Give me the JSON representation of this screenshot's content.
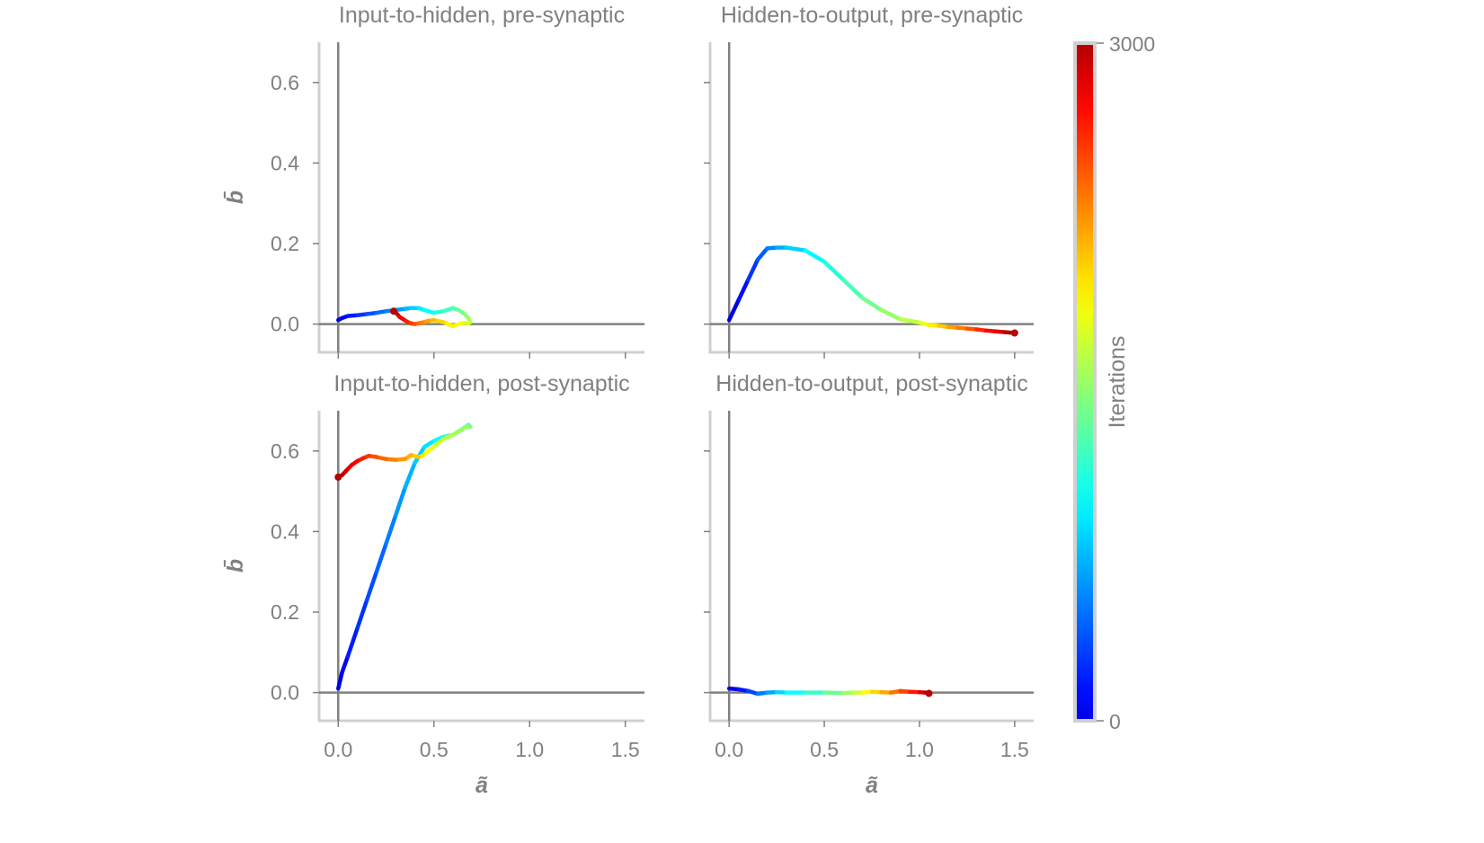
{
  "chart_data": {
    "type": "line",
    "colormap": "jet",
    "axis_color": "#808080",
    "spine_color": "#d0d0d0",
    "xlim": [
      -0.1,
      1.6
    ],
    "ylim": [
      -0.07,
      0.7
    ],
    "xticks": [
      0.0,
      0.5,
      1.0,
      1.5
    ],
    "xtick_labels": [
      "0.0",
      "0.5",
      "1.0",
      "1.5"
    ],
    "yticks": [
      0.0,
      0.2,
      0.4,
      0.6
    ],
    "ytick_labels": [
      "0.0",
      "0.2",
      "0.4",
      "0.6"
    ],
    "xlabel": "ã",
    "ylabel": "b̄",
    "colorbar": {
      "label": "Iterations",
      "min": 0,
      "max": 3000,
      "tick_labels": [
        "0",
        "3000"
      ]
    },
    "panels": [
      {
        "title": "Input-to-hidden, pre-synaptic",
        "x": [
          0.0,
          0.02,
          0.05,
          0.1,
          0.15,
          0.2,
          0.25,
          0.3,
          0.35,
          0.38,
          0.42,
          0.45,
          0.5,
          0.55,
          0.6,
          0.63,
          0.66,
          0.68,
          0.69,
          0.68,
          0.65,
          0.6,
          0.55,
          0.5,
          0.47,
          0.44,
          0.42,
          0.4,
          0.38,
          0.36,
          0.34,
          0.32,
          0.31,
          0.3,
          0.29
        ],
        "y": [
          0.01,
          0.015,
          0.02,
          0.022,
          0.025,
          0.028,
          0.032,
          0.035,
          0.038,
          0.04,
          0.04,
          0.035,
          0.028,
          0.032,
          0.04,
          0.035,
          0.025,
          0.015,
          0.005,
          0.002,
          0.003,
          -0.005,
          0.005,
          0.01,
          0.008,
          0.004,
          0.002,
          0.0,
          0.002,
          0.006,
          0.012,
          0.018,
          0.024,
          0.029,
          0.032
        ]
      },
      {
        "title": "Hidden-to-output, pre-synaptic",
        "x": [
          0.0,
          0.05,
          0.1,
          0.15,
          0.2,
          0.25,
          0.3,
          0.4,
          0.5,
          0.6,
          0.7,
          0.8,
          0.9,
          1.0,
          1.05,
          1.1,
          1.15,
          1.2,
          1.25,
          1.3,
          1.35,
          1.4,
          1.45,
          1.5
        ],
        "y": [
          0.01,
          0.06,
          0.11,
          0.16,
          0.188,
          0.19,
          0.19,
          0.183,
          0.155,
          0.11,
          0.065,
          0.035,
          0.012,
          0.004,
          -0.002,
          -0.004,
          -0.007,
          -0.009,
          -0.011,
          -0.013,
          -0.016,
          -0.018,
          -0.02,
          -0.022
        ]
      },
      {
        "title": "Input-to-hidden, post-synaptic",
        "x": [
          0.0,
          0.02,
          0.05,
          0.1,
          0.15,
          0.2,
          0.25,
          0.3,
          0.35,
          0.4,
          0.45,
          0.5,
          0.55,
          0.6,
          0.65,
          0.68,
          0.69,
          0.67,
          0.6,
          0.55,
          0.5,
          0.47,
          0.44,
          0.42,
          0.38,
          0.35,
          0.3,
          0.25,
          0.2,
          0.16,
          0.13,
          0.1,
          0.07,
          0.04,
          0.02,
          0.0
        ],
        "y": [
          0.01,
          0.05,
          0.09,
          0.16,
          0.23,
          0.3,
          0.37,
          0.44,
          0.51,
          0.57,
          0.61,
          0.625,
          0.635,
          0.64,
          0.655,
          0.665,
          0.66,
          0.66,
          0.64,
          0.63,
          0.61,
          0.6,
          0.588,
          0.585,
          0.59,
          0.58,
          0.578,
          0.58,
          0.585,
          0.588,
          0.582,
          0.575,
          0.565,
          0.55,
          0.54,
          0.535
        ]
      },
      {
        "title": "Hidden-to-output, post-synaptic",
        "x": [
          0.0,
          0.05,
          0.1,
          0.15,
          0.2,
          0.25,
          0.3,
          0.4,
          0.5,
          0.6,
          0.65,
          0.7,
          0.75,
          0.8,
          0.85,
          0.9,
          0.95,
          1.0,
          1.03,
          1.05
        ],
        "y": [
          0.01,
          0.008,
          0.004,
          -0.003,
          0.0,
          0.001,
          0.0,
          0.0,
          0.0,
          -0.001,
          0.0,
          0.0,
          0.002,
          0.001,
          0.0,
          0.004,
          0.002,
          0.001,
          0.0,
          -0.002
        ]
      }
    ]
  }
}
